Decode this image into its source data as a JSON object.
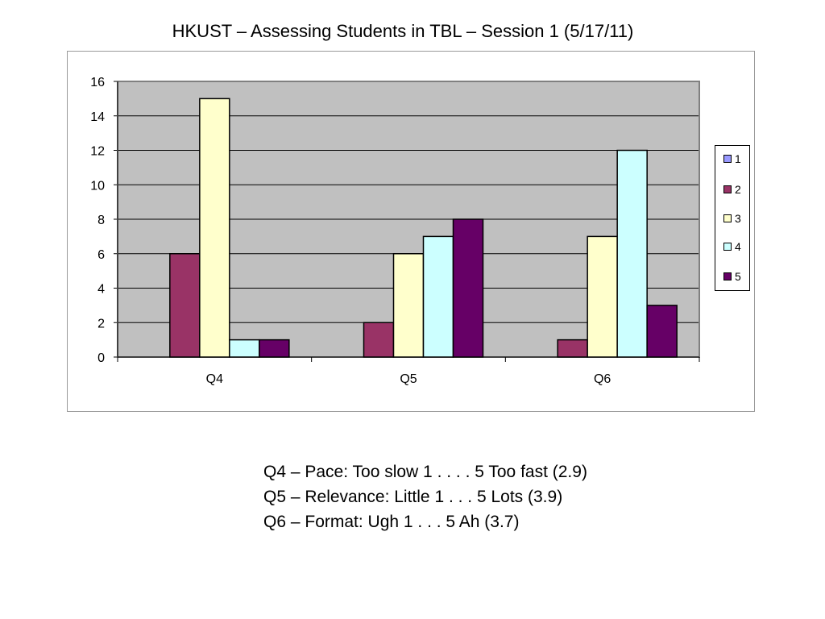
{
  "slide": {
    "title": "HKUST – Assessing Students in TBL – Session 1 (5/17/11)",
    "notes": [
      "Q4 – Pace: Too slow 1 . . . . 5 Too fast (2.9)",
      "Q5 – Relevance: Little 1 . . . 5 Lots (3.9)",
      "Q6 – Format: Ugh 1 . . . 5 Ah (3.7)"
    ]
  },
  "colors": {
    "plot_background": "#c0c0c0",
    "series": [
      "#9999ff",
      "#993366",
      "#ffffcc",
      "#ccffff",
      "#660066"
    ]
  },
  "chart_data": {
    "type": "bar",
    "categories": [
      "Q4",
      "Q5",
      "Q6"
    ],
    "series": [
      {
        "name": "1",
        "values": [
          0,
          0,
          0
        ]
      },
      {
        "name": "2",
        "values": [
          6,
          2,
          1
        ]
      },
      {
        "name": "3",
        "values": [
          15,
          6,
          7
        ]
      },
      {
        "name": "4",
        "values": [
          1,
          7,
          12
        ]
      },
      {
        "name": "5",
        "values": [
          1,
          8,
          3
        ]
      }
    ],
    "yticks": [
      "0",
      "2",
      "4",
      "6",
      "8",
      "10",
      "12",
      "14",
      "16"
    ],
    "ylim": [
      0,
      16
    ],
    "grid": true,
    "legend_position": "right"
  }
}
